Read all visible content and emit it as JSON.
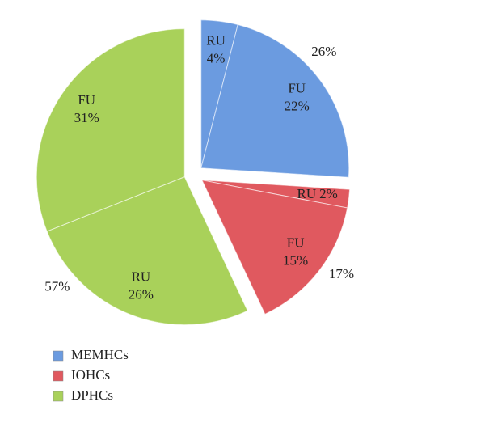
{
  "chart_data": {
    "type": "pie",
    "categories": [
      "MEMHCs",
      "IOHCs",
      "DPHCs"
    ],
    "values": [
      26,
      17,
      57
    ],
    "value_labels": [
      "26%",
      "17%",
      "57%"
    ],
    "colors": [
      "#6b9be0",
      "#e0595f",
      "#a9d15a"
    ],
    "segments": [
      {
        "names": [
          "RU",
          "FU"
        ],
        "values": [
          4,
          22
        ],
        "value_labels": [
          "4%",
          "22%"
        ]
      },
      {
        "names": [
          "RU",
          "FU"
        ],
        "values": [
          2,
          15
        ],
        "value_labels": [
          "2%",
          "15%"
        ]
      },
      {
        "names": [
          "RU",
          "FU"
        ],
        "values": [
          26,
          31
        ],
        "value_labels": [
          "26%",
          "31%"
        ]
      }
    ]
  }
}
